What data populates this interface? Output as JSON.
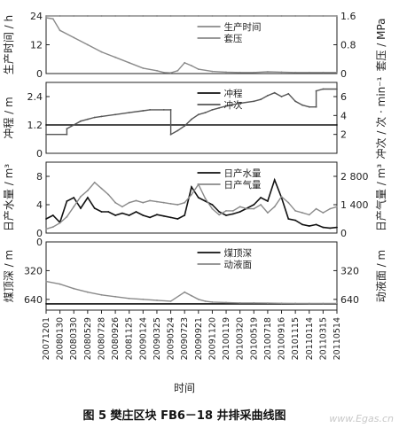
{
  "figure": {
    "caption": "图 5   樊庄区块 FB6－18 井排采曲线图",
    "xlabel": "时间",
    "watermark": "www.Egas.cn"
  },
  "x_ticks": [
    "20071201",
    "20080130",
    "20080330",
    "20080529",
    "20080728",
    "20080926",
    "20081125",
    "20090124",
    "20090325",
    "20090524",
    "20090723",
    "20090921",
    "20091120",
    "20100119",
    "20100320",
    "20100519",
    "20100718",
    "20100916",
    "20101115",
    "20110114",
    "20110315",
    "20110514"
  ],
  "chart_data": [
    {
      "type": "line",
      "ylabel_left": "生产时间 / h",
      "ylabel_right": "套压 / MPa",
      "ylim_left": [
        0,
        24
      ],
      "ylim_right": [
        0,
        1.6
      ],
      "yticks_left": [
        "24",
        "12",
        "0"
      ],
      "yticks_right": [
        "1.6",
        "0.8",
        "0"
      ],
      "series": [
        {
          "name": "生产时间",
          "axis": "left",
          "color": "#8a8a8a",
          "x": [
            0,
            1,
            2,
            3,
            4,
            5,
            6,
            7,
            8,
            9,
            10,
            11,
            12,
            13,
            14,
            15,
            16,
            17,
            18,
            19,
            20,
            21
          ],
          "values": [
            24,
            24,
            24,
            24,
            24,
            24,
            24,
            24,
            24,
            24,
            24,
            24,
            24,
            24,
            24,
            24,
            24,
            24,
            24,
            24,
            24,
            24
          ]
        },
        {
          "name": "套压",
          "axis": "right",
          "color": "#8a8a8a",
          "x": [
            0,
            0.5,
            1,
            2,
            3,
            4,
            5,
            6,
            7,
            8,
            8.5,
            9,
            9.5,
            10,
            10.5,
            11,
            12,
            13,
            14,
            15,
            16,
            17,
            18,
            19,
            20,
            21
          ],
          "values": [
            1.55,
            1.52,
            1.2,
            1.0,
            0.8,
            0.6,
            0.45,
            0.3,
            0.15,
            0.08,
            0.03,
            0.02,
            0.08,
            0.3,
            0.22,
            0.12,
            0.06,
            0.04,
            0.03,
            0.03,
            0.05,
            0.04,
            0.03,
            0.03,
            0.03,
            0.03
          ]
        }
      ]
    },
    {
      "type": "line",
      "ylabel_left": "冲程 / m",
      "ylabel_right": "冲次 / 次 · min⁻¹",
      "ylim_left": [
        0,
        3.0
      ],
      "ylim_right": [
        0,
        7.5
      ],
      "yticks_left": [
        "2.4",
        "1.2",
        "0"
      ],
      "yticks_right": [
        "6",
        "4",
        "2"
      ],
      "series": [
        {
          "name": "冲程",
          "axis": "left",
          "color": "#111111",
          "x": [
            0,
            21
          ],
          "values": [
            1.2,
            1.2
          ]
        },
        {
          "name": "冲次",
          "axis": "right",
          "color": "#555555",
          "x": [
            0,
            1.5,
            1.5,
            2,
            2.5,
            3,
            3.5,
            4,
            5,
            6,
            7,
            7.5,
            8.5,
            9,
            9,
            9.5,
            10,
            10.5,
            11,
            11.5,
            12,
            12.5,
            13,
            14,
            15,
            15.5,
            16,
            16.5,
            17,
            17.5,
            18,
            18.5,
            19,
            19.5,
            19.5,
            20,
            21
          ],
          "values": [
            2.0,
            2.0,
            2.6,
            3.0,
            3.4,
            3.6,
            3.8,
            3.9,
            4.1,
            4.3,
            4.5,
            4.6,
            4.6,
            4.6,
            2.0,
            2.4,
            2.9,
            3.6,
            4.1,
            4.3,
            4.6,
            4.8,
            5.0,
            5.3,
            5.5,
            5.7,
            6.1,
            6.4,
            6.0,
            6.3,
            5.5,
            5.1,
            4.9,
            4.9,
            6.6,
            6.8,
            6.8
          ]
        }
      ]
    },
    {
      "type": "line",
      "ylabel_left": "日产水量 / m³",
      "ylabel_right": "日产气量 / m³",
      "ylim_left": [
        0,
        10
      ],
      "ylim_right": [
        0,
        3500
      ],
      "yticks_left": [
        "8",
        "4",
        "0"
      ],
      "yticks_right": [
        "2 800",
        "1 400",
        "0"
      ],
      "series": [
        {
          "name": "日产水量",
          "axis": "left",
          "color": "#111111",
          "x": [
            0,
            0.5,
            1,
            1.5,
            2,
            2.5,
            3,
            3.5,
            4,
            4.5,
            5,
            5.5,
            6,
            6.5,
            7,
            7.5,
            8,
            8.5,
            9,
            9.5,
            10,
            10.5,
            11,
            11.5,
            12,
            12.5,
            13,
            13.5,
            14,
            14.5,
            15,
            15.5,
            16,
            16.5,
            17,
            17.5,
            18,
            18.5,
            19,
            19.5,
            20,
            20.5,
            21
          ],
          "values": [
            2,
            2.5,
            1.5,
            4.5,
            5,
            3.5,
            5,
            3.5,
            3,
            3,
            2.5,
            2.8,
            2.5,
            3,
            2.5,
            2.2,
            2.6,
            2.4,
            2.2,
            2,
            2.5,
            6.5,
            5,
            4.5,
            4,
            3,
            2.5,
            2.7,
            3,
            3.5,
            4,
            5,
            4.5,
            7.5,
            5,
            2,
            1.8,
            1.2,
            1,
            1.2,
            0.8,
            0.7,
            0.8
          ]
        },
        {
          "name": "日产气量",
          "axis": "right",
          "color": "#8a8a8a",
          "x": [
            0,
            0.5,
            1,
            1.5,
            2,
            2.5,
            3,
            3.5,
            4,
            4.5,
            5,
            5.5,
            6,
            6.5,
            7,
            7.5,
            8,
            8.5,
            9,
            9.5,
            10,
            10.5,
            11,
            11.5,
            12,
            12.5,
            13,
            13.5,
            14,
            14.5,
            15,
            15.5,
            16,
            16.5,
            17,
            17.5,
            18,
            18.5,
            19,
            19.5,
            20,
            20.5,
            21
          ],
          "values": [
            200,
            300,
            500,
            800,
            1300,
            1800,
            2100,
            2500,
            2200,
            1900,
            1500,
            1300,
            1500,
            1600,
            1500,
            1600,
            1550,
            1500,
            1450,
            1400,
            1500,
            1900,
            2400,
            1700,
            1200,
            900,
            1100,
            1100,
            1300,
            1200,
            1200,
            1400,
            1000,
            1300,
            1800,
            1500,
            1100,
            1000,
            900,
            1200,
            1000,
            1200,
            1300
          ]
        }
      ]
    },
    {
      "type": "line",
      "ylabel_left": "煤顶深 / m",
      "ylabel_right": "动液面 / m",
      "ylim_left": [
        0,
        760
      ],
      "ylim_right": [
        0,
        760
      ],
      "y_inverted": true,
      "yticks_left": [
        "0",
        "320",
        "640"
      ],
      "yticks_right": [
        "320",
        "640"
      ],
      "series": [
        {
          "name": "煤顶深",
          "axis": "left",
          "color": "#111111",
          "x": [
            0,
            21
          ],
          "values": [
            690,
            690
          ]
        },
        {
          "name": "动液面",
          "axis": "right",
          "color": "#8a8a8a",
          "x": [
            0,
            1,
            2,
            3,
            4,
            5,
            6,
            7,
            8,
            9,
            10,
            10.5,
            11,
            11.5,
            12,
            13,
            14,
            15,
            16,
            17,
            18,
            19,
            20,
            21
          ],
          "values": [
            440,
            470,
            520,
            560,
            590,
            610,
            630,
            640,
            650,
            660,
            560,
            600,
            640,
            660,
            670,
            675,
            680,
            680,
            682,
            684,
            685,
            686,
            686,
            686
          ]
        }
      ]
    }
  ]
}
